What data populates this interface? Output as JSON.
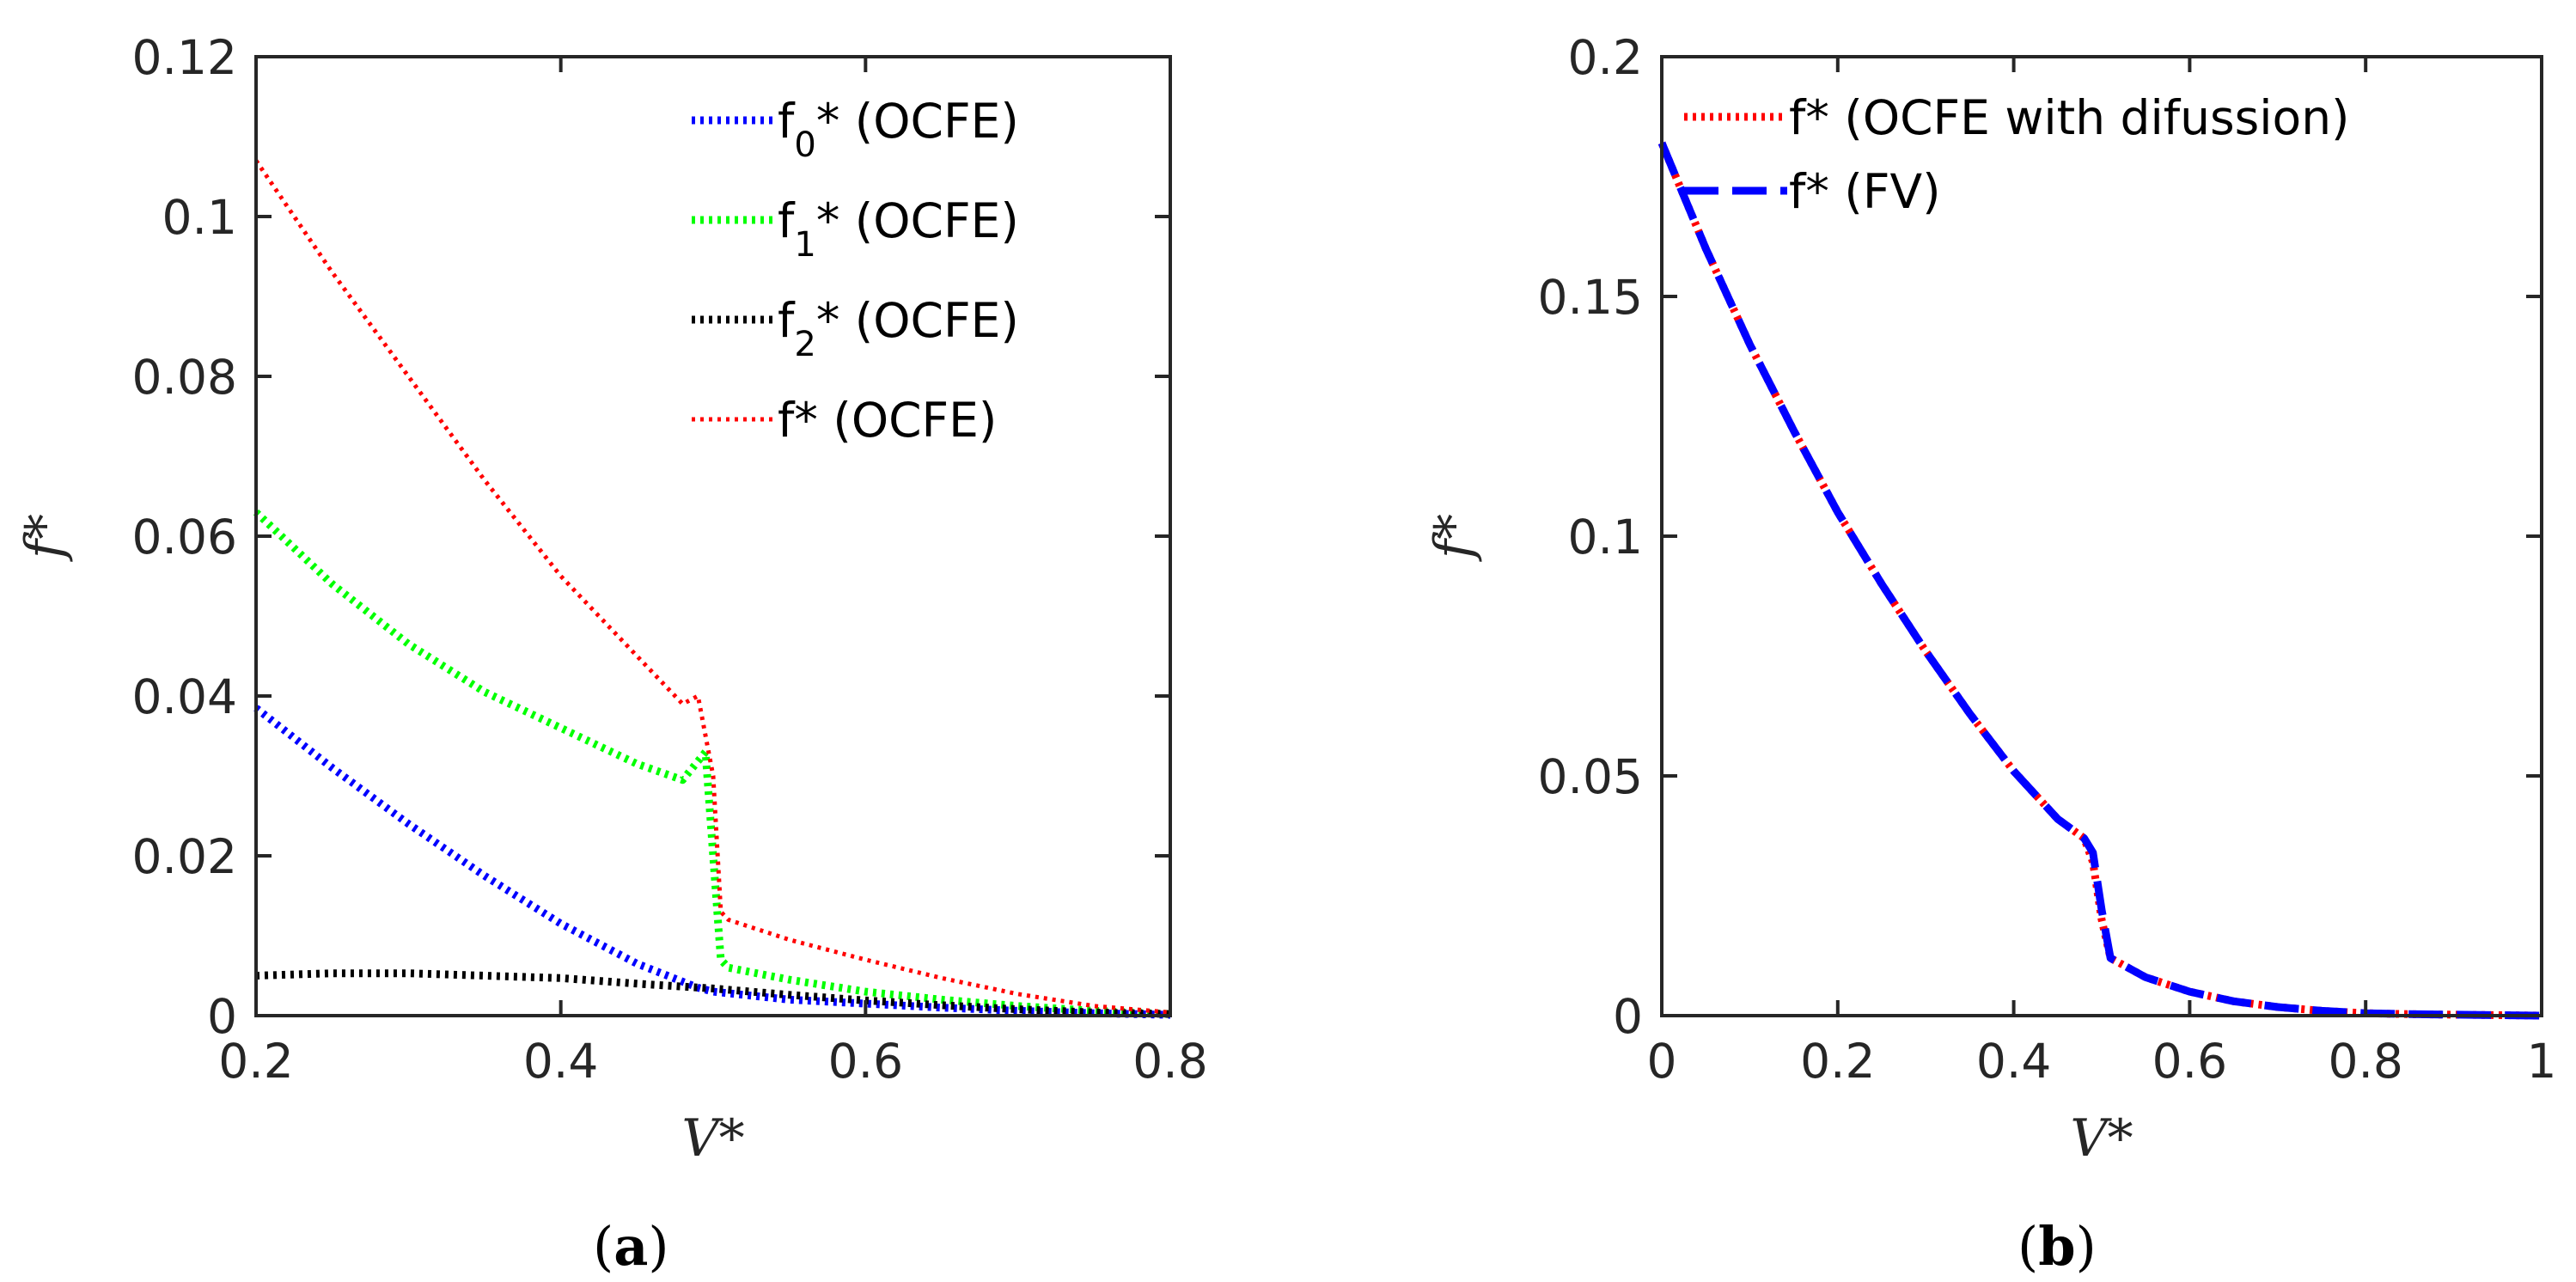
{
  "panels": [
    {
      "panel_label": "a",
      "axes_color": "#262626"
    },
    {
      "panel_label": "b",
      "axes_color": "#262626"
    }
  ],
  "chart_data": [
    {
      "type": "line",
      "xlabel": "V*",
      "ylabel": "f*",
      "xlim": [
        0.2,
        0.8
      ],
      "ylim": [
        0,
        0.12
      ],
      "xticks": [
        "0.2",
        "0.4",
        "0.6",
        "0.8"
      ],
      "yticks": [
        "0",
        "0.02",
        "0.04",
        "0.06",
        "0.08",
        "0.1",
        "0.12"
      ],
      "grid": false,
      "legend_position": "top-right",
      "series": [
        {
          "name": "f0* (OCFE)",
          "legend": {
            "main": "f",
            "sub": "0",
            "rest": "* (OCFE)"
          },
          "color": "#0000ff",
          "style": "dotted",
          "x": [
            0.2,
            0.25,
            0.3,
            0.35,
            0.4,
            0.45,
            0.49,
            0.5,
            0.55,
            0.6,
            0.65,
            0.7,
            0.75,
            0.8
          ],
          "y": [
            0.0385,
            0.031,
            0.024,
            0.0175,
            0.0115,
            0.0065,
            0.0035,
            0.003,
            0.002,
            0.0015,
            0.001,
            0.0006,
            0.0003,
            0.0001
          ]
        },
        {
          "name": "f1* (OCFE)",
          "legend": {
            "main": "f",
            "sub": "1",
            "rest": "* (OCFE)"
          },
          "color": "#00ff00",
          "style": "dotted",
          "x": [
            0.2,
            0.25,
            0.3,
            0.35,
            0.4,
            0.45,
            0.48,
            0.495,
            0.505,
            0.51,
            0.55,
            0.6,
            0.65,
            0.7,
            0.75,
            0.8
          ],
          "y": [
            0.063,
            0.054,
            0.0465,
            0.0405,
            0.036,
            0.0315,
            0.0295,
            0.033,
            0.007,
            0.006,
            0.0045,
            0.003,
            0.002,
            0.0012,
            0.0006,
            0.0002
          ]
        },
        {
          "name": "f2* (OCFE)",
          "legend": {
            "main": "f",
            "sub": "2",
            "rest": "* (OCFE)"
          },
          "color": "#000000",
          "style": "dotted",
          "x": [
            0.2,
            0.25,
            0.3,
            0.35,
            0.4,
            0.45,
            0.5,
            0.55,
            0.6,
            0.65,
            0.7,
            0.75,
            0.8
          ],
          "y": [
            0.005,
            0.0053,
            0.0053,
            0.005,
            0.0047,
            0.004,
            0.0034,
            0.0026,
            0.0019,
            0.0013,
            0.0008,
            0.0004,
            0.0002
          ]
        },
        {
          "name": "f*  (OCFE)",
          "legend": {
            "main": "f",
            "sub": "",
            "rest": "*  (OCFE)"
          },
          "color": "#ff0000",
          "style": "dotted",
          "x": [
            0.2,
            0.25,
            0.3,
            0.35,
            0.4,
            0.45,
            0.47,
            0.48,
            0.49,
            0.5,
            0.505,
            0.51,
            0.55,
            0.6,
            0.65,
            0.7,
            0.75,
            0.8
          ],
          "y": [
            0.107,
            0.093,
            0.08,
            0.067,
            0.055,
            0.045,
            0.041,
            0.039,
            0.04,
            0.03,
            0.013,
            0.012,
            0.0095,
            0.007,
            0.0047,
            0.0027,
            0.0012,
            0.0004
          ]
        }
      ]
    },
    {
      "type": "line",
      "xlabel": "V*",
      "ylabel": "f*",
      "xlim": [
        0,
        1
      ],
      "ylim": [
        0,
        0.2
      ],
      "xticks": [
        "0",
        "0.2",
        "0.4",
        "0.6",
        "0.8",
        "1"
      ],
      "yticks": [
        "0",
        "0.05",
        "0.1",
        "0.15",
        "0.2"
      ],
      "grid": false,
      "legend_position": "top-right",
      "series": [
        {
          "name": "f* (OCFE with difussion)",
          "legend": {
            "main": "f",
            "sub": "",
            "rest": "* (OCFE with difussion)"
          },
          "color": "#ff0000",
          "style": "dotted",
          "x": [
            0,
            0.05,
            0.1,
            0.15,
            0.2,
            0.25,
            0.3,
            0.35,
            0.4,
            0.45,
            0.48,
            0.49,
            0.5,
            0.51,
            0.55,
            0.6,
            0.65,
            0.7,
            0.75,
            0.8,
            0.85,
            0.9,
            0.95,
            1.0
          ],
          "y": [
            0.182,
            0.16,
            0.14,
            0.122,
            0.105,
            0.09,
            0.076,
            0.063,
            0.051,
            0.041,
            0.037,
            0.032,
            0.02,
            0.012,
            0.008,
            0.005,
            0.003,
            0.0018,
            0.001,
            0.0005,
            0.0003,
            0.0002,
            0.0001,
            0.0
          ]
        },
        {
          "name": "f* (FV)",
          "legend": {
            "main": "f",
            "sub": "",
            "rest": "* (FV)"
          },
          "color": "#0000ff",
          "style": "dashed",
          "x": [
            0,
            0.05,
            0.1,
            0.15,
            0.2,
            0.25,
            0.3,
            0.35,
            0.4,
            0.45,
            0.48,
            0.49,
            0.5,
            0.51,
            0.55,
            0.6,
            0.65,
            0.7,
            0.75,
            0.8,
            0.85,
            0.9,
            0.95,
            1.0
          ],
          "y": [
            0.182,
            0.16,
            0.14,
            0.122,
            0.105,
            0.09,
            0.076,
            0.063,
            0.051,
            0.041,
            0.037,
            0.034,
            0.022,
            0.012,
            0.008,
            0.005,
            0.003,
            0.0018,
            0.001,
            0.0005,
            0.0003,
            0.0002,
            0.0001,
            0.0
          ]
        }
      ]
    }
  ]
}
